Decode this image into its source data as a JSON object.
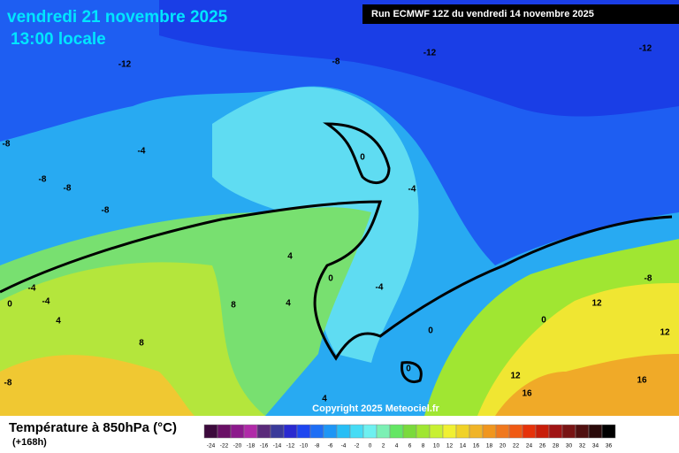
{
  "header": {
    "date": "vendredi 21 novembre 2025",
    "time": "13:00 locale",
    "run": "Run ECMWF 12Z du vendredi 14 novembre 2025"
  },
  "map": {
    "contour_labels": [
      -12,
      -8,
      -12,
      -12,
      -8,
      -4,
      -8,
      -8,
      -8,
      -4,
      0,
      -4,
      0,
      -4,
      4,
      4,
      0,
      8,
      4,
      -4,
      0,
      8,
      -8,
      0,
      4,
      12,
      16,
      12,
      12,
      16,
      0,
      -8
    ],
    "copyright": "Copyright 2025 Meteociel.fr"
  },
  "legend": {
    "title": "Température à 850hPa (°C)",
    "lead": "(+168h)",
    "ticks": [
      -24,
      -22,
      -20,
      -18,
      -16,
      -14,
      -12,
      -10,
      -8,
      -6,
      -4,
      -2,
      0,
      2,
      4,
      6,
      8,
      10,
      12,
      14,
      16,
      18,
      20,
      22,
      24,
      26,
      28,
      30,
      32,
      34,
      36
    ],
    "colors": [
      "#3c0a3c",
      "#6a1066",
      "#8c1a8c",
      "#b02aa8",
      "#5a2a7a",
      "#3a3a9a",
      "#2a2ad0",
      "#1e46f0",
      "#1e6ef5",
      "#1e96f5",
      "#28bef5",
      "#46dcf5",
      "#6ef0f0",
      "#7cf0b4",
      "#64e664",
      "#7ada3c",
      "#a0e632",
      "#c8f032",
      "#f0f032",
      "#f0d228",
      "#f0b428",
      "#f0961e",
      "#f0781e",
      "#f05a14",
      "#e6320a",
      "#c81e0a",
      "#a01414",
      "#781414",
      "#501010",
      "#2a0a0a",
      "#000000"
    ]
  }
}
